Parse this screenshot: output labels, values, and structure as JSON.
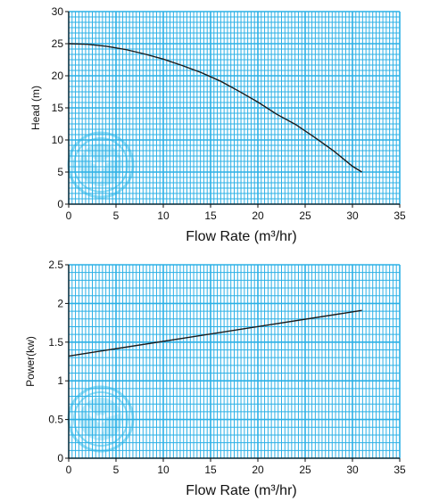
{
  "colors": {
    "grid": "#2bb0e6",
    "curve": "#1a1a1a",
    "logo": "#7fd6f3",
    "background": "#ffffff"
  },
  "icons": [
    "fan-logo-watermark"
  ],
  "chart_data": [
    {
      "type": "line",
      "xlabel": "Flow Rate (m³/hr)",
      "ylabel": "Head (m)",
      "xlim": [
        0,
        35
      ],
      "ylim": [
        0,
        30
      ],
      "x_ticks": [
        0,
        5,
        10,
        15,
        20,
        25,
        30,
        35
      ],
      "y_ticks": [
        0,
        5,
        10,
        15,
        20,
        25,
        30
      ],
      "x_tick_labels": [
        "0",
        "5",
        "10",
        "15",
        "20",
        "25",
        "30",
        "35"
      ],
      "y_tick_labels": [
        "0",
        "5",
        "10",
        "15",
        "20",
        "25",
        "30"
      ],
      "grid": true,
      "series": [
        {
          "x": [
            0,
            2,
            4,
            6,
            8,
            10,
            12,
            14,
            16,
            18,
            20,
            22,
            24,
            26,
            28,
            30,
            31
          ],
          "y": [
            25.0,
            24.9,
            24.6,
            24.1,
            23.4,
            22.6,
            21.6,
            20.5,
            19.2,
            17.6,
            15.9,
            14.0,
            12.4,
            10.4,
            8.3,
            5.9,
            5.0
          ]
        }
      ]
    },
    {
      "type": "line",
      "xlabel": "Flow Rate (m³/hr)",
      "ylabel": "Power(kw)",
      "xlim": [
        0,
        35
      ],
      "ylim": [
        0,
        2.5
      ],
      "x_ticks": [
        0,
        5,
        10,
        15,
        20,
        25,
        30,
        35
      ],
      "y_ticks": [
        0,
        0.5,
        1,
        1.5,
        2,
        2.5
      ],
      "x_tick_labels": [
        "0",
        "5",
        "10",
        "15",
        "20",
        "25",
        "30",
        "35"
      ],
      "y_tick_labels": [
        "0",
        "0.5",
        "1",
        "1.5",
        "2",
        "2.5"
      ],
      "grid": true,
      "series": [
        {
          "x": [
            0,
            31
          ],
          "y": [
            1.32,
            1.91
          ]
        }
      ]
    }
  ]
}
